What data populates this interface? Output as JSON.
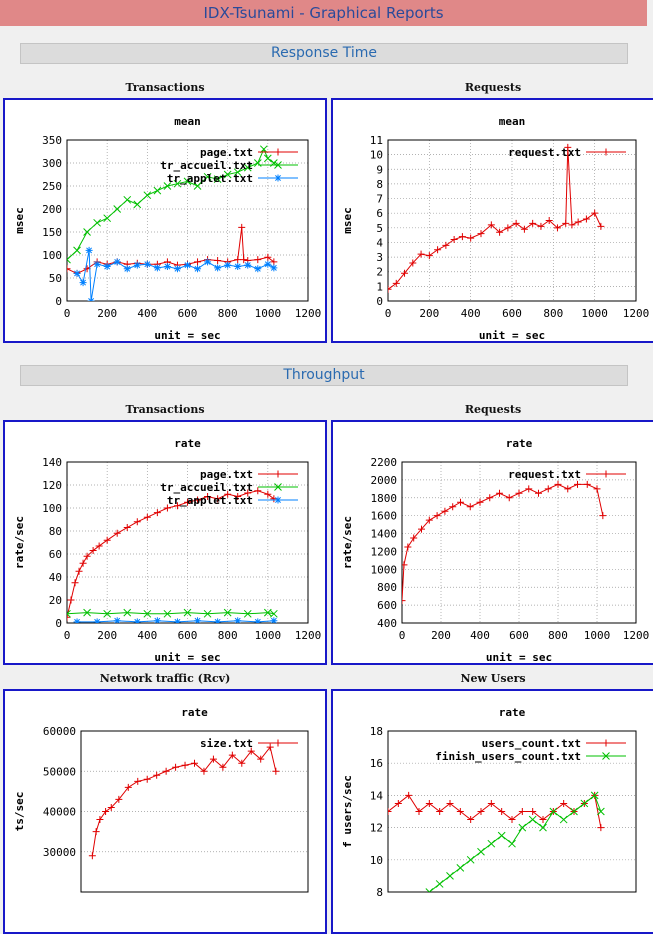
{
  "header": {
    "title": "IDX-Tsunami - Graphical Reports"
  },
  "sections": {
    "response_time": "Response Time",
    "throughput": "Throughput"
  },
  "titles": {
    "resp_transactions": "Transactions",
    "resp_requests": "Requests",
    "thr_transactions": "Transactions",
    "thr_requests": "Requests",
    "network": "Network traffic (Rcv)",
    "new_users": "New Users"
  },
  "colors": {
    "page": "#e00000",
    "accueil": "#00c000",
    "applet": "#0080ff",
    "request": "#e00000",
    "size": "#e00000",
    "users": "#e00000",
    "finish": "#00c000",
    "frame": "#1818c8"
  },
  "chart_data": [
    {
      "id": "resp_transactions",
      "type": "line",
      "title": "mean",
      "xlabel": "unit = sec",
      "ylabel": "msec",
      "xlim": [
        0,
        1200
      ],
      "ylim": [
        0,
        350
      ],
      "xticks": [
        0,
        200,
        400,
        600,
        800,
        1000,
        1200
      ],
      "yticks": [
        0,
        50,
        100,
        150,
        200,
        250,
        300,
        350
      ],
      "grid": true,
      "series": [
        {
          "name": "page.txt",
          "color": "#e00000",
          "marker": "+",
          "x": [
            0,
            50,
            100,
            150,
            200,
            250,
            300,
            350,
            400,
            450,
            500,
            550,
            600,
            650,
            700,
            750,
            800,
            850,
            870,
            880,
            900,
            950,
            1000,
            1030
          ],
          "y": [
            70,
            60,
            70,
            85,
            80,
            85,
            80,
            82,
            80,
            80,
            85,
            78,
            80,
            85,
            90,
            88,
            85,
            90,
            160,
            90,
            88,
            90,
            95,
            85
          ]
        },
        {
          "name": "tr_accueil.txt",
          "color": "#00c000",
          "marker": "x",
          "x": [
            0,
            50,
            100,
            150,
            200,
            250,
            300,
            350,
            400,
            450,
            500,
            550,
            600,
            650,
            700,
            750,
            800,
            850,
            900,
            950,
            980,
            1000,
            1030
          ],
          "y": [
            90,
            110,
            150,
            170,
            180,
            200,
            220,
            210,
            230,
            240,
            250,
            255,
            260,
            250,
            270,
            265,
            275,
            280,
            290,
            300,
            330,
            310,
            300
          ]
        },
        {
          "name": "tr_applet.txt",
          "color": "#0080ff",
          "marker": "*",
          "x": [
            50,
            80,
            110,
            120,
            150,
            200,
            250,
            300,
            350,
            400,
            450,
            500,
            550,
            600,
            650,
            700,
            750,
            800,
            850,
            900,
            950,
            1000,
            1030
          ],
          "y": [
            60,
            40,
            110,
            0,
            80,
            75,
            85,
            70,
            78,
            80,
            72,
            75,
            70,
            78,
            70,
            85,
            72,
            78,
            75,
            78,
            70,
            80,
            72
          ]
        }
      ]
    },
    {
      "id": "resp_requests",
      "type": "line",
      "title": "mean",
      "xlabel": "unit = sec",
      "ylabel": "msec",
      "xlim": [
        0,
        1200
      ],
      "ylim": [
        0,
        11
      ],
      "xticks": [
        0,
        200,
        400,
        600,
        800,
        1000,
        1200
      ],
      "yticks": [
        0,
        1,
        2,
        3,
        4,
        5,
        6,
        7,
        8,
        9,
        10,
        11
      ],
      "grid": true,
      "series": [
        {
          "name": "request.txt",
          "color": "#e00000",
          "marker": "+",
          "x": [
            0,
            40,
            80,
            120,
            160,
            200,
            240,
            280,
            320,
            360,
            400,
            450,
            500,
            540,
            580,
            620,
            660,
            700,
            740,
            780,
            820,
            860,
            870,
            890,
            920,
            960,
            1000,
            1030
          ],
          "y": [
            0.8,
            1.2,
            1.9,
            2.6,
            3.2,
            3.1,
            3.5,
            3.8,
            4.2,
            4.4,
            4.3,
            4.6,
            5.2,
            4.7,
            5.0,
            5.3,
            4.9,
            5.3,
            5.1,
            5.5,
            5.0,
            5.3,
            10.5,
            5.2,
            5.4,
            5.6,
            6.0,
            5.1
          ]
        }
      ]
    },
    {
      "id": "thr_transactions",
      "type": "line",
      "title": "rate",
      "xlabel": "unit = sec",
      "ylabel": "rate/sec",
      "xlim": [
        0,
        1200
      ],
      "ylim": [
        0,
        140
      ],
      "xticks": [
        0,
        200,
        400,
        600,
        800,
        1000,
        1200
      ],
      "yticks": [
        0,
        20,
        40,
        60,
        80,
        100,
        120,
        140
      ],
      "grid": true,
      "series": [
        {
          "name": "page.txt",
          "color": "#e00000",
          "marker": "+",
          "x": [
            0,
            20,
            40,
            60,
            80,
            100,
            130,
            160,
            200,
            250,
            300,
            350,
            400,
            450,
            500,
            550,
            600,
            650,
            700,
            750,
            800,
            850,
            900,
            950,
            1000,
            1030
          ],
          "y": [
            5,
            20,
            35,
            45,
            52,
            58,
            63,
            67,
            72,
            78,
            83,
            88,
            92,
            96,
            100,
            102,
            105,
            107,
            110,
            108,
            112,
            110,
            113,
            115,
            112,
            108
          ]
        },
        {
          "name": "tr_accueil.txt",
          "color": "#00c000",
          "marker": "x",
          "x": [
            0,
            100,
            200,
            300,
            400,
            500,
            600,
            700,
            800,
            900,
            1000,
            1030
          ],
          "y": [
            8,
            9,
            8,
            9,
            8,
            8,
            9,
            8,
            9,
            8,
            9,
            8
          ]
        },
        {
          "name": "tr_applet.txt",
          "color": "#0080ff",
          "marker": "*",
          "x": [
            50,
            150,
            250,
            350,
            450,
            550,
            650,
            750,
            850,
            950,
            1030
          ],
          "y": [
            1,
            1,
            2,
            1,
            2,
            1,
            2,
            1,
            2,
            1,
            2
          ]
        }
      ]
    },
    {
      "id": "thr_requests",
      "type": "line",
      "title": "rate",
      "xlabel": "unit = sec",
      "ylabel": "rate/sec",
      "xlim": [
        0,
        1200
      ],
      "ylim": [
        400,
        2200
      ],
      "xticks": [
        0,
        200,
        400,
        600,
        800,
        1000,
        1200
      ],
      "yticks": [
        400,
        600,
        800,
        1000,
        1200,
        1400,
        1600,
        1800,
        2000,
        2200
      ],
      "grid": true,
      "series": [
        {
          "name": "request.txt",
          "color": "#e00000",
          "marker": "+",
          "x": [
            0,
            10,
            30,
            60,
            100,
            140,
            180,
            220,
            260,
            300,
            350,
            400,
            450,
            500,
            550,
            600,
            650,
            700,
            750,
            800,
            850,
            900,
            950,
            1000,
            1030
          ],
          "y": [
            650,
            1050,
            1250,
            1350,
            1450,
            1550,
            1600,
            1650,
            1700,
            1750,
            1700,
            1750,
            1800,
            1850,
            1800,
            1850,
            1900,
            1850,
            1900,
            1950,
            1900,
            1950,
            1950,
            1900,
            1600
          ]
        }
      ]
    },
    {
      "id": "network",
      "type": "line",
      "title": "rate",
      "ylabel": "ts/sec",
      "xlim": [
        0,
        1200
      ],
      "ylim": [
        20000,
        60000
      ],
      "yticks": [
        30000,
        40000,
        50000,
        60000
      ],
      "grid": true,
      "series": [
        {
          "name": "size.txt",
          "color": "#e00000",
          "marker": "+",
          "x": [
            60,
            80,
            100,
            130,
            160,
            200,
            250,
            300,
            350,
            400,
            450,
            500,
            550,
            600,
            650,
            700,
            750,
            800,
            850,
            900,
            950,
            1000,
            1030
          ],
          "y": [
            29000,
            35000,
            38000,
            40000,
            41000,
            43000,
            46000,
            47500,
            48000,
            49000,
            50000,
            51000,
            51500,
            52000,
            50000,
            53000,
            51000,
            54000,
            52000,
            55000,
            53000,
            56000,
            50000
          ]
        }
      ]
    },
    {
      "id": "new_users",
      "type": "line",
      "title": "rate",
      "ylabel": "f users/sec",
      "xlim": [
        0,
        1200
      ],
      "ylim": [
        8,
        18
      ],
      "yticks": [
        8,
        10,
        12,
        14,
        16,
        18
      ],
      "grid": true,
      "series": [
        {
          "name": "users_count.txt",
          "color": "#e00000",
          "marker": "+",
          "x": [
            0,
            50,
            100,
            150,
            200,
            250,
            300,
            350,
            400,
            450,
            500,
            550,
            600,
            650,
            700,
            750,
            800,
            850,
            900,
            950,
            1000,
            1030
          ],
          "y": [
            13,
            13.5,
            14,
            13,
            13.5,
            13,
            13.5,
            13,
            12.5,
            13,
            13.5,
            13,
            12.5,
            13,
            13,
            12.5,
            13,
            13.5,
            13,
            13.5,
            14,
            12
          ]
        },
        {
          "name": "finish_users_count.txt",
          "color": "#00c000",
          "marker": "x",
          "x": [
            200,
            250,
            300,
            350,
            400,
            450,
            500,
            550,
            600,
            650,
            700,
            750,
            800,
            850,
            900,
            950,
            1000,
            1030
          ],
          "y": [
            8,
            8.5,
            9,
            9.5,
            10,
            10.5,
            11,
            11.5,
            11,
            12,
            12.5,
            12,
            13,
            12.5,
            13,
            13.5,
            14,
            13
          ]
        }
      ]
    }
  ]
}
